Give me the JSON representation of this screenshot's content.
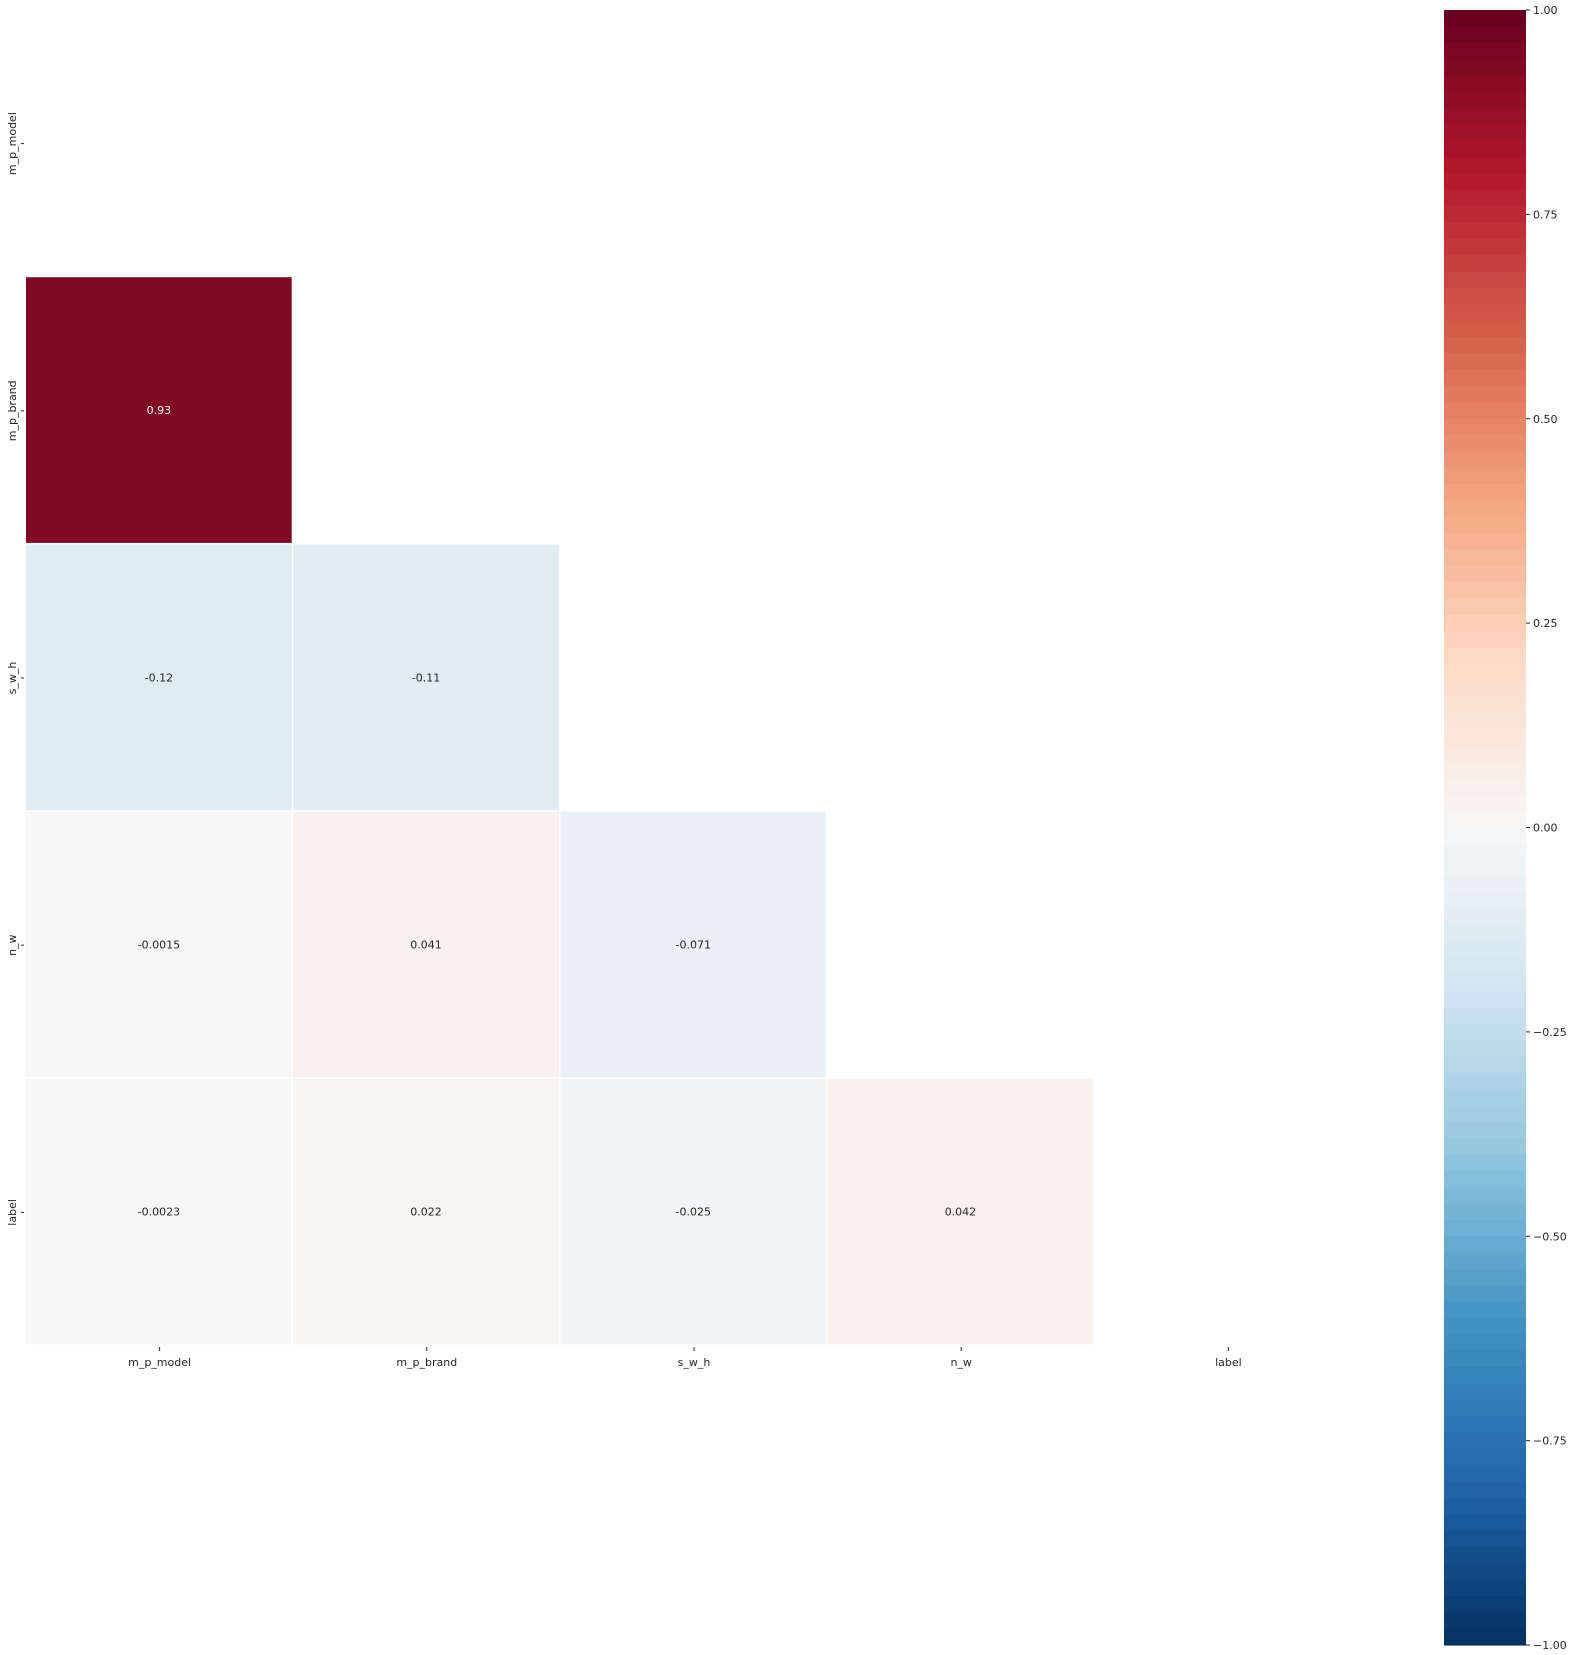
{
  "chart_data": {
    "type": "heatmap",
    "title": "",
    "xlabel": "",
    "ylabel": "",
    "variables": [
      "m_p_model",
      "m_p_brand",
      "s_w_h",
      "n_w",
      "label"
    ],
    "mask": "upper-triangle-including-diagonal",
    "cells": [
      {
        "row": "m_p_brand",
        "col": "m_p_model",
        "value": 0.93,
        "label": "0.93"
      },
      {
        "row": "s_w_h",
        "col": "m_p_model",
        "value": -0.12,
        "label": "-0.12"
      },
      {
        "row": "s_w_h",
        "col": "m_p_brand",
        "value": -0.11,
        "label": "-0.11"
      },
      {
        "row": "n_w",
        "col": "m_p_model",
        "value": -0.0015,
        "label": "-0.0015"
      },
      {
        "row": "n_w",
        "col": "m_p_brand",
        "value": 0.041,
        "label": "0.041"
      },
      {
        "row": "n_w",
        "col": "s_w_h",
        "value": -0.071,
        "label": "-0.071"
      },
      {
        "row": "label",
        "col": "m_p_model",
        "value": -0.0023,
        "label": "-0.0023"
      },
      {
        "row": "label",
        "col": "m_p_brand",
        "value": 0.022,
        "label": "0.022"
      },
      {
        "row": "label",
        "col": "s_w_h",
        "value": -0.025,
        "label": "-0.025"
      },
      {
        "row": "label",
        "col": "n_w",
        "value": 0.042,
        "label": "0.042"
      }
    ],
    "colorbar": {
      "colormap": "RdBu_r",
      "vmin": -1.0,
      "vmax": 1.0,
      "ticks": [
        1.0,
        0.75,
        0.5,
        0.25,
        0.0,
        -0.25,
        -0.5,
        -0.75,
        -1.0
      ],
      "tick_labels": [
        "1.00",
        "0.75",
        "0.50",
        "0.25",
        "0.00",
        "−0.25",
        "−0.50",
        "−0.75",
        "−1.00"
      ]
    },
    "grid": false,
    "legend": "right (colorbar)"
  }
}
